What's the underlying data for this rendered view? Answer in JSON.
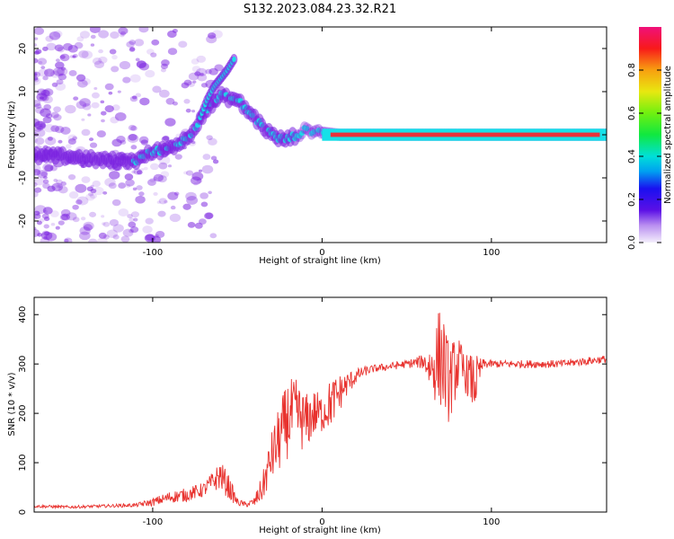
{
  "title": "S132.2023.084.23.32.R21",
  "colors": {
    "snr_line": "#e8322e",
    "axis": "#000000",
    "spectrogram_purple": "#7a20e0",
    "spectrogram_cyan": "#16e0e8",
    "spectrogram_red": "#e8323a"
  },
  "chart_data": [
    {
      "type": "heatmap",
      "xlabel": "Height of straight line (km)",
      "ylabel": "Frequency (Hz)",
      "xlim": [
        -170,
        168
      ],
      "ylim": [
        -25,
        25
      ],
      "xticks": [
        -100,
        0,
        100
      ],
      "xtick_labels": [
        "-100",
        "0",
        "100"
      ],
      "yticks": [
        20,
        10,
        0,
        -10,
        -20
      ],
      "ytick_labels": [
        "20",
        "10",
        "0",
        "-10",
        "-20"
      ],
      "ridge": {
        "name": "frequency ridge",
        "x": [
          -170,
          -150,
          -130,
          -110,
          -100,
          -90,
          -80,
          -70,
          -60,
          -55,
          -50,
          -45,
          -40,
          -35,
          -30,
          -25,
          -20,
          -15,
          -10,
          -5,
          0,
          10,
          20,
          50,
          70,
          90,
          120,
          168
        ],
        "y": [
          -5,
          -5,
          -6,
          -6,
          -4,
          -3,
          -1,
          5,
          9,
          8.5,
          8,
          6,
          4,
          2,
          0,
          -1,
          -1,
          0,
          1,
          1,
          0.5,
          0,
          0,
          0,
          0,
          0,
          0,
          0
        ]
      },
      "branch": {
        "name": "upper branch",
        "x": [
          -72,
          -68,
          -64,
          -60,
          -56,
          -52
        ],
        "y": [
          4,
          8,
          11,
          13,
          15,
          17.5
        ]
      },
      "colorbar": {
        "label": "Normalized spectral amplitude",
        "range": [
          0,
          1
        ],
        "ticks": [
          0,
          0.2,
          0.4,
          0.6,
          0.8
        ],
        "tick_labels": [
          "0.0",
          "0.2",
          "0.4",
          "0.6",
          "0.8"
        ]
      },
      "grid": false
    },
    {
      "type": "line",
      "xlabel": "Height of straight line (km)",
      "ylabel": "SNR (10 * v/v)",
      "xlim": [
        -170,
        168
      ],
      "ylim": [
        0,
        435
      ],
      "xticks": [
        -100,
        0,
        100
      ],
      "xtick_labels": [
        "-100",
        "0",
        "100"
      ],
      "yticks": [
        0,
        100,
        200,
        300,
        400
      ],
      "ytick_labels": [
        "0",
        "100",
        "200",
        "300",
        "400"
      ],
      "series": [
        {
          "x": [
            -170,
            -150,
            -130,
            -110,
            -100,
            -90,
            -80,
            -70,
            -65,
            -60,
            -55,
            -50,
            -45,
            -40,
            -35,
            -30,
            -25,
            -20,
            -15,
            -10,
            -5,
            0,
            5,
            10,
            15,
            20,
            25,
            30,
            40,
            50,
            60,
            65,
            70,
            75,
            80,
            85,
            90,
            95,
            100,
            120,
            140,
            168
          ],
          "y": [
            12,
            10,
            12,
            14,
            20,
            30,
            35,
            45,
            60,
            75,
            50,
            20,
            15,
            20,
            50,
            110,
            150,
            190,
            200,
            180,
            200,
            200,
            220,
            240,
            260,
            275,
            285,
            290,
            295,
            300,
            305,
            290,
            320,
            260,
            300,
            280,
            260,
            300,
            300,
            300,
            300,
            310
          ],
          "noise": [
            3,
            3,
            3,
            4,
            8,
            12,
            14,
            15,
            20,
            30,
            25,
            8,
            5,
            10,
            30,
            50,
            70,
            80,
            70,
            60,
            50,
            40,
            50,
            40,
            25,
            15,
            10,
            8,
            8,
            8,
            15,
            60,
            110,
            80,
            60,
            40,
            60,
            10,
            8,
            8,
            8,
            8
          ]
        }
      ],
      "grid": false
    }
  ]
}
